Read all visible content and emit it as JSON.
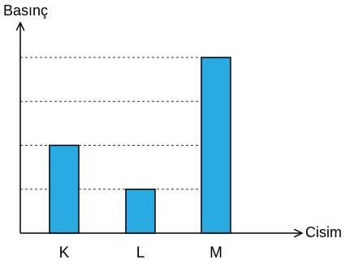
{
  "chart_data": {
    "type": "bar",
    "ylabel": "Basınç",
    "xlabel": "Cisim",
    "categories": [
      "K",
      "L",
      "M"
    ],
    "values": [
      2,
      1,
      4
    ],
    "ylim": [
      0,
      4
    ],
    "y_tick_labels_shown": false,
    "grid": "horizontal dashed lines at each level",
    "bar_color": "#29abe2",
    "bar_edge_color": "#000000"
  }
}
